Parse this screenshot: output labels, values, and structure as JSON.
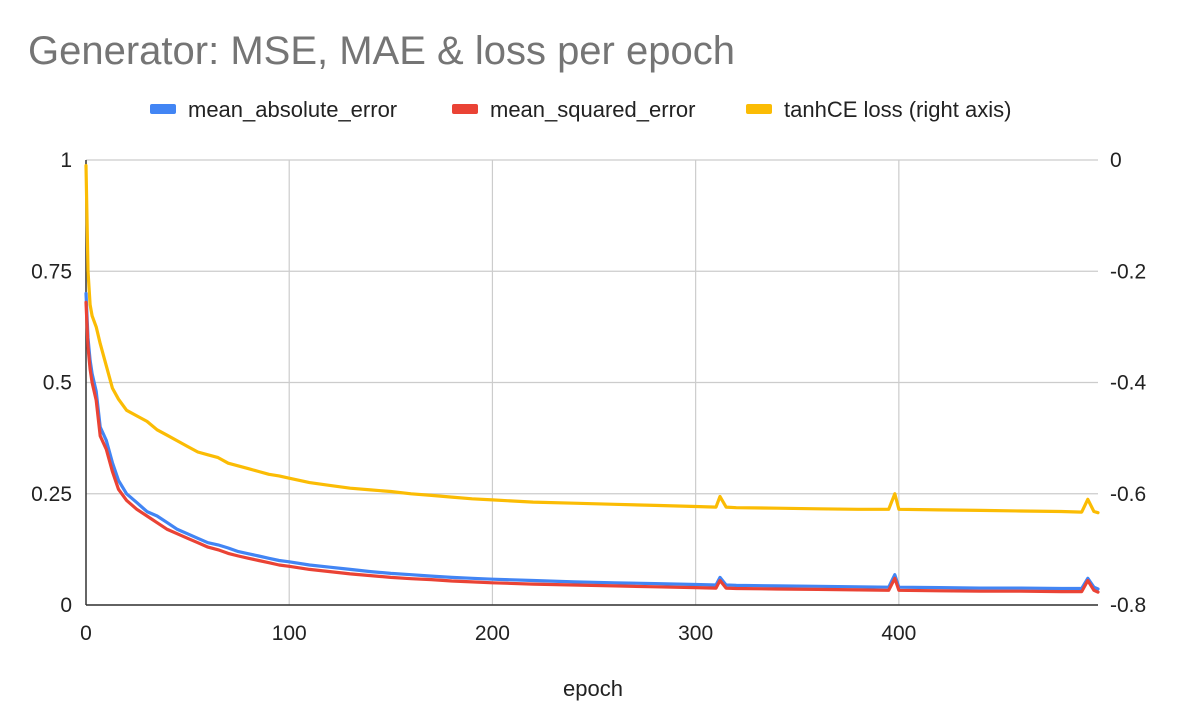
{
  "chart_data": {
    "type": "line",
    "title": "Generator: MSE, MAE & loss per epoch",
    "xlabel": "epoch",
    "ylabel": "",
    "y2label": "",
    "xlim": [
      0,
      498
    ],
    "ylim": [
      0,
      1
    ],
    "y2lim": [
      -0.8,
      0
    ],
    "x_ticks": [
      0,
      100,
      200,
      300,
      400
    ],
    "y_ticks": [
      0,
      0.25,
      0.5,
      0.75,
      1
    ],
    "y_tick_labels": [
      "0",
      "0.25",
      "0.5",
      "0.75",
      "1"
    ],
    "y2_ticks": [
      -0.8,
      -0.6,
      -0.4,
      -0.2,
      0
    ],
    "y2_tick_labels": [
      "-0.8",
      "-0.6",
      "-0.4",
      "-0.2",
      "0"
    ],
    "grid": true,
    "legend_position": "top",
    "series": [
      {
        "name": "mean_absolute_error",
        "axis": "left",
        "color": "#4285f4",
        "x": [
          0,
          1,
          2,
          3,
          5,
          7,
          10,
          13,
          16,
          20,
          25,
          30,
          35,
          40,
          45,
          50,
          55,
          60,
          65,
          70,
          75,
          80,
          85,
          90,
          95,
          100,
          110,
          120,
          130,
          140,
          150,
          160,
          170,
          180,
          190,
          200,
          220,
          240,
          260,
          280,
          300,
          310,
          312,
          315,
          320,
          340,
          360,
          380,
          395,
          398,
          400,
          420,
          440,
          460,
          480,
          490,
          493,
          496,
          498
        ],
        "y": [
          0.7,
          0.6,
          0.55,
          0.52,
          0.48,
          0.4,
          0.37,
          0.32,
          0.28,
          0.25,
          0.23,
          0.21,
          0.2,
          0.185,
          0.17,
          0.16,
          0.15,
          0.14,
          0.135,
          0.128,
          0.12,
          0.115,
          0.11,
          0.105,
          0.1,
          0.097,
          0.09,
          0.085,
          0.08,
          0.075,
          0.071,
          0.068,
          0.065,
          0.062,
          0.06,
          0.058,
          0.055,
          0.052,
          0.05,
          0.048,
          0.046,
          0.045,
          0.062,
          0.045,
          0.044,
          0.043,
          0.042,
          0.041,
          0.04,
          0.068,
          0.04,
          0.039,
          0.038,
          0.038,
          0.037,
          0.037,
          0.06,
          0.04,
          0.036
        ]
      },
      {
        "name": "mean_squared_error",
        "axis": "left",
        "color": "#ea4335",
        "x": [
          0,
          1,
          2,
          3,
          5,
          7,
          10,
          13,
          16,
          20,
          25,
          30,
          35,
          40,
          45,
          50,
          55,
          60,
          65,
          70,
          75,
          80,
          85,
          90,
          95,
          100,
          110,
          120,
          130,
          140,
          150,
          160,
          170,
          180,
          190,
          200,
          220,
          240,
          260,
          280,
          300,
          310,
          312,
          315,
          320,
          340,
          360,
          380,
          395,
          398,
          400,
          420,
          440,
          460,
          480,
          490,
          493,
          496,
          498
        ],
        "y": [
          0.68,
          0.58,
          0.53,
          0.5,
          0.46,
          0.38,
          0.35,
          0.3,
          0.26,
          0.235,
          0.215,
          0.2,
          0.185,
          0.17,
          0.16,
          0.15,
          0.14,
          0.13,
          0.124,
          0.116,
          0.11,
          0.105,
          0.1,
          0.095,
          0.09,
          0.087,
          0.08,
          0.075,
          0.07,
          0.066,
          0.062,
          0.059,
          0.057,
          0.054,
          0.052,
          0.05,
          0.047,
          0.045,
          0.043,
          0.041,
          0.039,
          0.038,
          0.055,
          0.038,
          0.037,
          0.036,
          0.035,
          0.034,
          0.033,
          0.06,
          0.033,
          0.032,
          0.031,
          0.031,
          0.03,
          0.03,
          0.055,
          0.033,
          0.029
        ]
      },
      {
        "name": "tanhCE loss (right axis)",
        "axis": "right",
        "color": "#fbbc04",
        "x": [
          0,
          1,
          2,
          3,
          5,
          7,
          10,
          13,
          16,
          20,
          25,
          30,
          35,
          40,
          45,
          50,
          55,
          60,
          65,
          70,
          75,
          80,
          85,
          90,
          95,
          100,
          110,
          120,
          130,
          140,
          150,
          160,
          170,
          180,
          190,
          200,
          220,
          240,
          260,
          280,
          300,
          310,
          312,
          315,
          320,
          340,
          360,
          380,
          395,
          398,
          400,
          420,
          440,
          460,
          480,
          490,
          493,
          496,
          498
        ],
        "y": [
          -0.01,
          -0.2,
          -0.26,
          -0.28,
          -0.3,
          -0.33,
          -0.37,
          -0.41,
          -0.43,
          -0.45,
          -0.46,
          -0.47,
          -0.485,
          -0.495,
          -0.505,
          -0.515,
          -0.525,
          -0.53,
          -0.535,
          -0.545,
          -0.55,
          -0.555,
          -0.56,
          -0.565,
          -0.568,
          -0.572,
          -0.58,
          -0.585,
          -0.59,
          -0.593,
          -0.596,
          -0.6,
          -0.603,
          -0.606,
          -0.609,
          -0.611,
          -0.615,
          -0.617,
          -0.619,
          -0.621,
          -0.623,
          -0.624,
          -0.605,
          -0.624,
          -0.625,
          -0.626,
          -0.627,
          -0.628,
          -0.628,
          -0.6,
          -0.628,
          -0.629,
          -0.63,
          -0.631,
          -0.632,
          -0.633,
          -0.61,
          -0.632,
          -0.634
        ]
      }
    ]
  }
}
